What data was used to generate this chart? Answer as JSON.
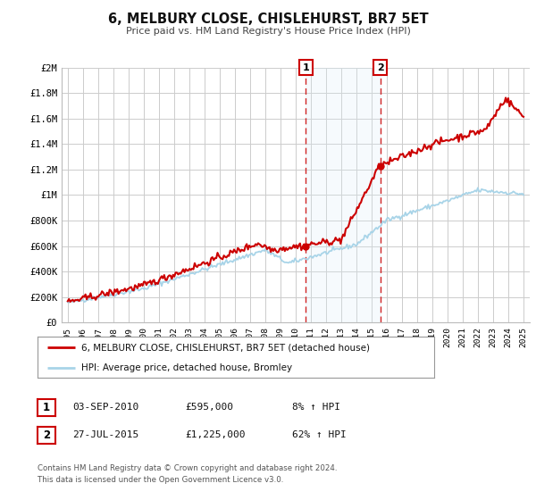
{
  "title": "6, MELBURY CLOSE, CHISLEHURST, BR7 5ET",
  "subtitle": "Price paid vs. HM Land Registry's House Price Index (HPI)",
  "ylim": [
    0,
    2000000
  ],
  "yticks": [
    0,
    200000,
    400000,
    600000,
    800000,
    1000000,
    1200000,
    1400000,
    1600000,
    1800000,
    2000000
  ],
  "ytick_labels": [
    "£0",
    "£200K",
    "£400K",
    "£600K",
    "£800K",
    "£1M",
    "£1.2M",
    "£1.4M",
    "£1.6M",
    "£1.8M",
    "£2M"
  ],
  "xlim_start": 1994.6,
  "xlim_end": 2025.4,
  "hpi_color": "#a8d4e8",
  "price_color": "#cc0000",
  "grid_color": "#cccccc",
  "bg_color": "#ffffff",
  "sale1_x": 2010.67,
  "sale1_y": 595000,
  "sale2_x": 2015.57,
  "sale2_y": 1225000,
  "shade_color": "#dceef8",
  "legend_label_price": "6, MELBURY CLOSE, CHISLEHURST, BR7 5ET (detached house)",
  "legend_label_hpi": "HPI: Average price, detached house, Bromley",
  "annotation1_date": "03-SEP-2010",
  "annotation1_price": "£595,000",
  "annotation1_hpi": "8% ↑ HPI",
  "annotation2_date": "27-JUL-2015",
  "annotation2_price": "£1,225,000",
  "annotation2_hpi": "62% ↑ HPI",
  "footnote": "Contains HM Land Registry data © Crown copyright and database right 2024.\nThis data is licensed under the Open Government Licence v3.0."
}
